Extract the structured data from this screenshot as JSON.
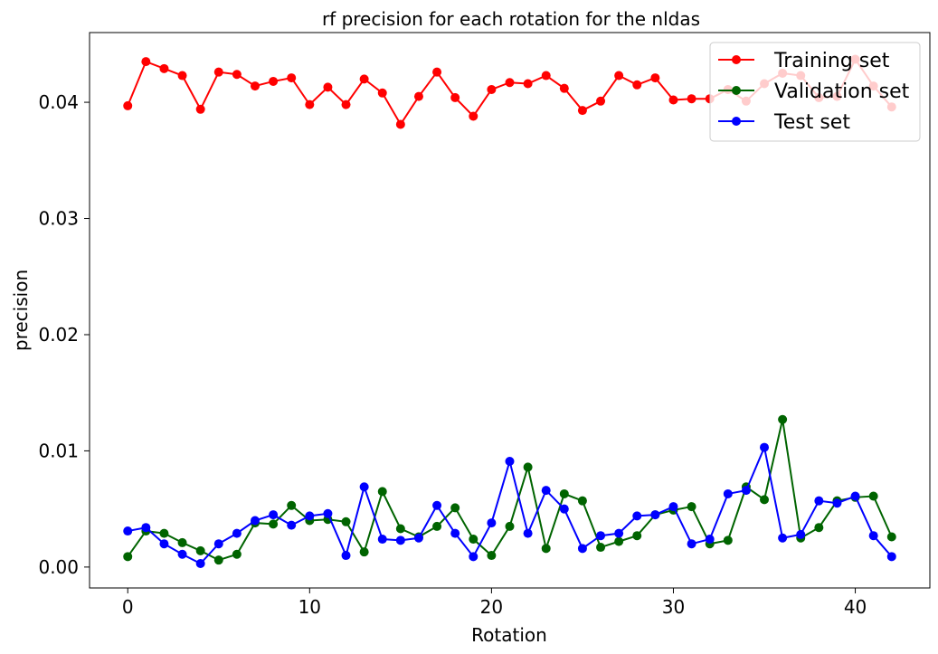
{
  "chart_data": {
    "type": "line",
    "title": "rf precision for each rotation for the nldas",
    "xlabel": "Rotation",
    "ylabel": "precision",
    "xlim": [
      -2.1,
      44.1
    ],
    "ylim": [
      -0.0018,
      0.046
    ],
    "xticks": [
      0,
      10,
      20,
      30,
      40
    ],
    "xtick_labels": [
      "0",
      "10",
      "20",
      "30",
      "40"
    ],
    "yticks": [
      0.0,
      0.01,
      0.02,
      0.03,
      0.04
    ],
    "ytick_labels": [
      "0.00",
      "0.01",
      "0.02",
      "0.03",
      "0.04"
    ],
    "grid": false,
    "legend_position": "top-right",
    "x": [
      0,
      1,
      2,
      3,
      4,
      5,
      6,
      7,
      8,
      9,
      10,
      11,
      12,
      13,
      14,
      15,
      16,
      17,
      18,
      19,
      20,
      21,
      22,
      23,
      24,
      25,
      26,
      27,
      28,
      29,
      30,
      31,
      32,
      33,
      34,
      35,
      36,
      37,
      38,
      39,
      40,
      41,
      42
    ],
    "series": [
      {
        "name": "Training set",
        "color": "#ff0000",
        "values": [
          0.0397,
          0.0435,
          0.0429,
          0.0423,
          0.0394,
          0.0426,
          0.0424,
          0.0414,
          0.0418,
          0.0421,
          0.0398,
          0.0413,
          0.0398,
          0.042,
          0.0408,
          0.0381,
          0.0405,
          0.0426,
          0.0404,
          0.0388,
          0.0411,
          0.0417,
          0.0416,
          0.0423,
          0.0412,
          0.0393,
          0.0401,
          0.0423,
          0.0415,
          0.0421,
          0.0402,
          0.0403,
          0.0403,
          0.0411,
          0.0401,
          0.0416,
          0.0425,
          0.0423,
          0.0404,
          0.0405,
          0.0437,
          0.0414,
          0.0396
        ]
      },
      {
        "name": "Validation set",
        "color": "#006400",
        "values": [
          0.0009,
          0.0031,
          0.0029,
          0.0021,
          0.0014,
          0.0006,
          0.0011,
          0.0038,
          0.0037,
          0.0053,
          0.004,
          0.0041,
          0.0039,
          0.0013,
          0.0065,
          0.0033,
          0.0026,
          0.0035,
          0.0051,
          0.0024,
          0.001,
          0.0035,
          0.0086,
          0.0016,
          0.0063,
          0.0057,
          0.0017,
          0.0022,
          0.0027,
          0.0045,
          0.0049,
          0.0052,
          0.002,
          0.0023,
          0.0069,
          0.0058,
          0.0127,
          0.0025,
          0.0034,
          0.0057,
          0.006,
          0.0061,
          0.0026
        ]
      },
      {
        "name": "Test set",
        "color": "#0000ff",
        "values": [
          0.0031,
          0.0034,
          0.002,
          0.0011,
          0.0003,
          0.002,
          0.0029,
          0.004,
          0.0045,
          0.0036,
          0.0044,
          0.0046,
          0.001,
          0.0069,
          0.0024,
          0.0023,
          0.0025,
          0.0053,
          0.0029,
          0.0009,
          0.0038,
          0.0091,
          0.0029,
          0.0066,
          0.005,
          0.0016,
          0.0027,
          0.0029,
          0.0044,
          0.0045,
          0.0052,
          0.002,
          0.0024,
          0.0063,
          0.0066,
          0.0103,
          0.0025,
          0.0028,
          0.0057,
          0.0055,
          0.0061,
          0.0027,
          0.0009
        ]
      }
    ]
  }
}
